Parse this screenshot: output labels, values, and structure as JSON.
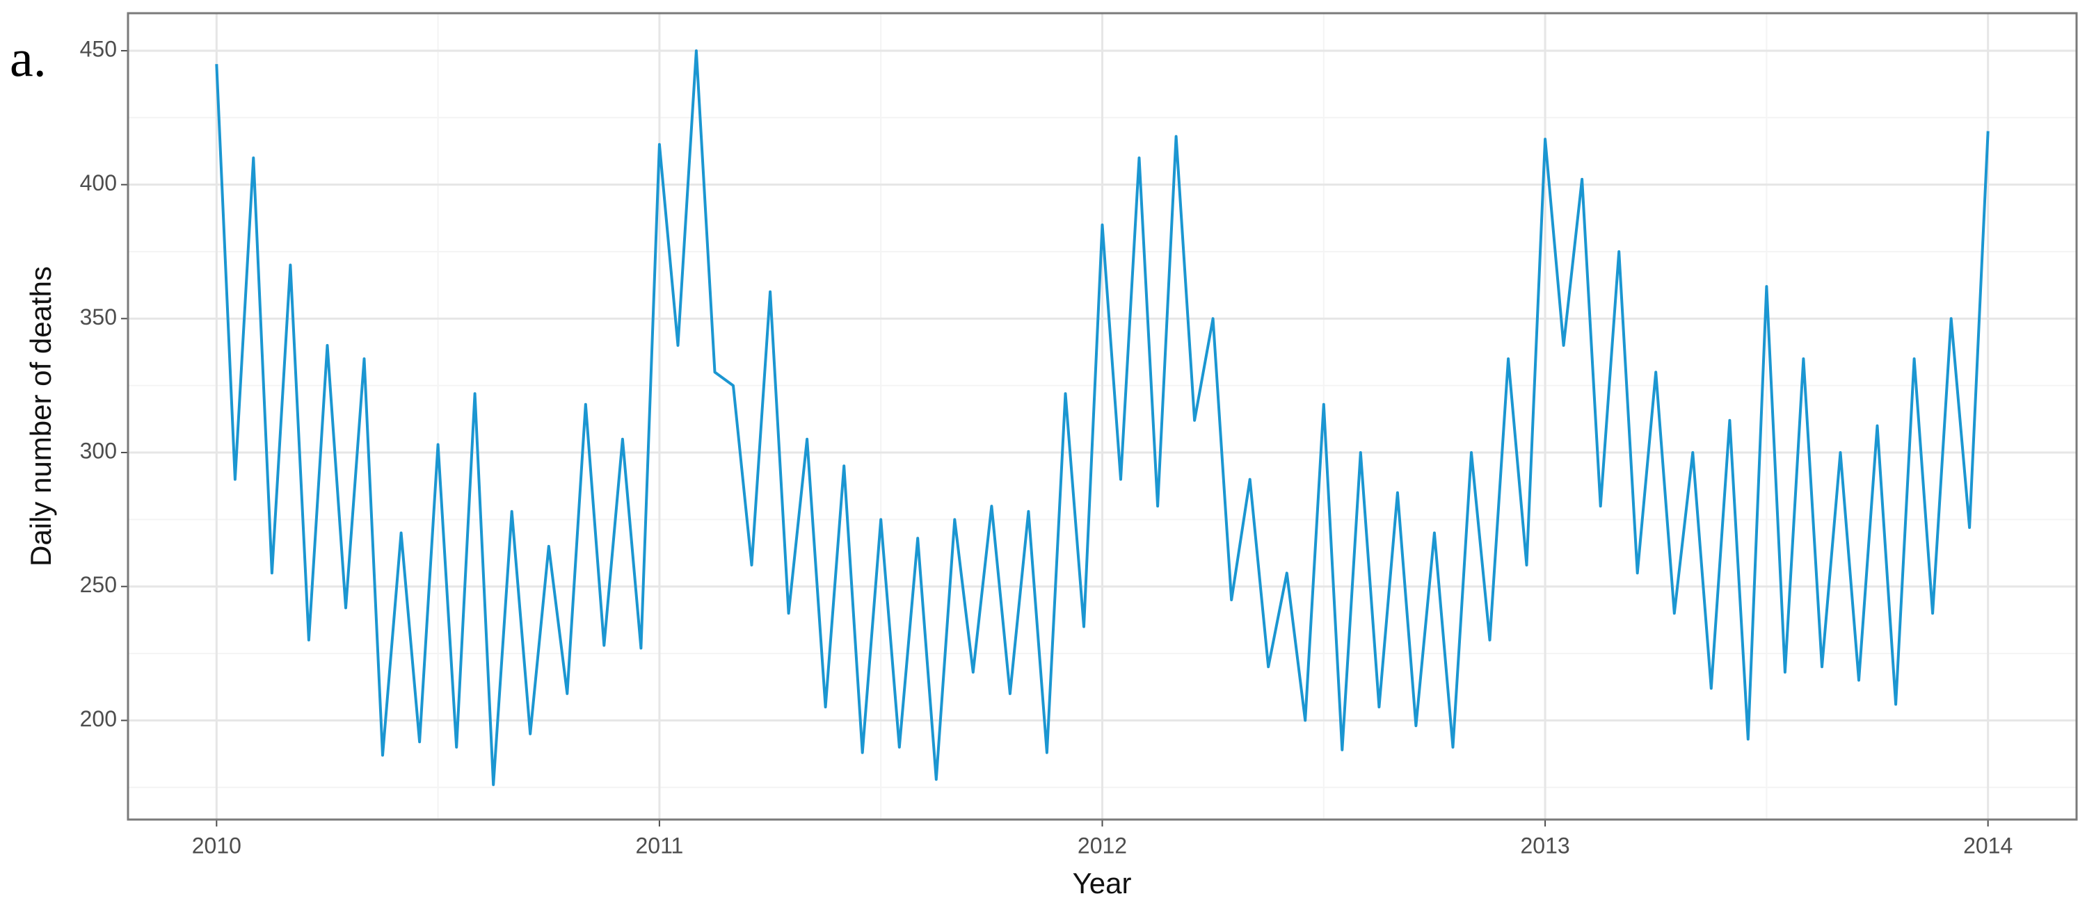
{
  "chart_data": {
    "type": "line",
    "panel_label": "a.",
    "x_label": "Year",
    "y_label": "Daily number of deaths",
    "x": [
      2010.0,
      2010.0417,
      2010.0833,
      2010.125,
      2010.1667,
      2010.2083,
      2010.25,
      2010.2917,
      2010.3333,
      2010.375,
      2010.4167,
      2010.4583,
      2010.5,
      2010.5417,
      2010.5833,
      2010.625,
      2010.6667,
      2010.7083,
      2010.75,
      2010.7917,
      2010.8333,
      2010.875,
      2010.9167,
      2010.9583,
      2011.0,
      2011.0417,
      2011.0833,
      2011.125,
      2011.1667,
      2011.2083,
      2011.25,
      2011.2917,
      2011.3333,
      2011.375,
      2011.4167,
      2011.4583,
      2011.5,
      2011.5417,
      2011.5833,
      2011.625,
      2011.6667,
      2011.7083,
      2011.75,
      2011.7917,
      2011.8333,
      2011.875,
      2011.9167,
      2011.9583,
      2012.0,
      2012.0417,
      2012.0833,
      2012.125,
      2012.1667,
      2012.2083,
      2012.25,
      2012.2917,
      2012.3333,
      2012.375,
      2012.4167,
      2012.4583,
      2012.5,
      2012.5417,
      2012.5833,
      2012.625,
      2012.6667,
      2012.7083,
      2012.75,
      2012.7917,
      2012.8333,
      2012.875,
      2012.9167,
      2012.9583,
      2013.0,
      2013.0417,
      2013.0833,
      2013.125,
      2013.1667,
      2013.2083,
      2013.25,
      2013.2917,
      2013.3333,
      2013.375,
      2013.4167,
      2013.4583,
      2013.5,
      2013.5417,
      2013.5833,
      2013.625,
      2013.6667,
      2013.7083,
      2013.75,
      2013.7917,
      2013.8333,
      2013.875,
      2013.9167,
      2013.9583,
      2014.0
    ],
    "series": [
      {
        "color": "#1b96d1",
        "values": [
          445,
          290,
          410,
          255,
          370,
          230,
          340,
          242,
          335,
          187,
          270,
          192,
          303,
          190,
          322,
          176,
          278,
          195,
          265,
          210,
          318,
          228,
          305,
          227,
          415,
          340,
          450,
          330,
          325,
          258,
          360,
          240,
          305,
          205,
          295,
          188,
          275,
          190,
          268,
          178,
          275,
          218,
          280,
          210,
          278,
          188,
          322,
          235,
          385,
          290,
          410,
          280,
          418,
          312,
          350,
          245,
          290,
          220,
          255,
          200,
          318,
          189,
          300,
          205,
          285,
          198,
          270,
          190,
          300,
          230,
          335,
          258,
          417,
          340,
          402,
          280,
          375,
          255,
          330,
          240,
          300,
          212,
          312,
          193,
          362,
          218,
          335,
          220,
          300,
          215,
          310,
          206,
          335,
          240,
          350,
          272,
          420
        ]
      }
    ],
    "xlim": [
      2009.8,
      2014.2
    ],
    "ylim": [
      163,
      464
    ],
    "xticks": [
      2010,
      2011,
      2012,
      2013,
      2014
    ],
    "yticks": [
      200,
      250,
      300,
      350,
      400,
      450
    ],
    "x_minor_ticks": [
      2010.5,
      2011.5,
      2012.5,
      2013.5
    ],
    "y_minor_ticks": [
      175,
      225,
      275,
      325,
      375,
      425
    ],
    "grid": true
  }
}
